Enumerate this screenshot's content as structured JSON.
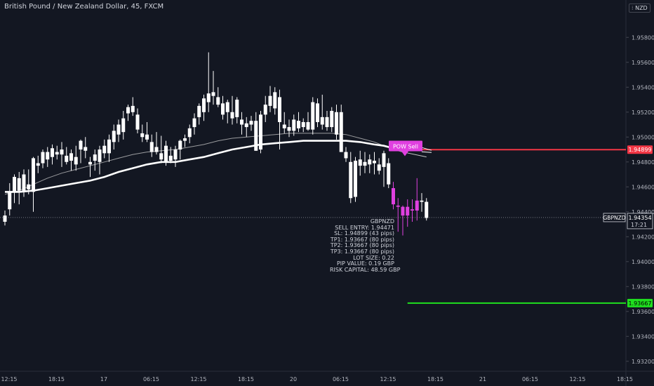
{
  "header": {
    "title": "British Pound / New Zealand Dollar, 45, FXCM",
    "currency": "NZD"
  },
  "colors": {
    "background": "#131722",
    "candle": "#ffffff",
    "signal_candle": "#e040e0",
    "sl_line": "#f23645",
    "tp_line": "#1fe01f",
    "ma_slow": "#ffffff",
    "ma_fast": "#c8c8c8",
    "axis_text": "#b2b5be"
  },
  "tags": {
    "sl": "1.94899",
    "tp": "1.93667",
    "symbol": "GBPNZD",
    "last_price": "1.94354",
    "countdown": "17:21",
    "signal": "POW Sell"
  },
  "info": {
    "lines": [
      "GBPNZD",
      "SELL ENTRY: 1.94471",
      "SL: 1.94899 (43 pips)",
      "TP1: 1.93667 (80 pips)",
      "TP2: 1.93667 (80 pips)",
      "TP3: 1.93667 (80 pips)",
      "LOT SIZE: 0.22",
      "PIP VALUE: 0.19 GBP",
      "RISK CAPITAL: 48.59 GBP"
    ]
  },
  "chart_data": {
    "type": "candlestick",
    "ylim": [
      1.9312,
      1.961
    ],
    "y_ticks": [
      "1.95800",
      "1.95600",
      "1.95400",
      "1.95200",
      "1.95000",
      "1.94800",
      "1.94600",
      "1.94400",
      "1.94200",
      "1.94000",
      "1.93800",
      "1.93600",
      "1.93400",
      "1.93200"
    ],
    "x_ticks": [
      "12:15",
      "18:15",
      "17",
      "06:15",
      "12:15",
      "18:15",
      "20",
      "06:15",
      "12:15",
      "18:15",
      "21",
      "06:15",
      "12:15",
      "18:15"
    ],
    "levels": {
      "sell_entry": 1.94471,
      "sl": 1.94899,
      "tp": 1.93667,
      "last": 1.94354
    },
    "candles": [
      {
        "o": 1.9437,
        "h": 1.9441,
        "l": 1.9429,
        "c": 1.9432
      },
      {
        "o": 1.9442,
        "h": 1.9463,
        "l": 1.9437,
        "c": 1.9456
      },
      {
        "o": 1.9456,
        "h": 1.947,
        "l": 1.9447,
        "c": 1.9468
      },
      {
        "o": 1.9467,
        "h": 1.9472,
        "l": 1.9446,
        "c": 1.9457
      },
      {
        "o": 1.9456,
        "h": 1.9474,
        "l": 1.9452,
        "c": 1.947
      },
      {
        "o": 1.9462,
        "h": 1.9474,
        "l": 1.9454,
        "c": 1.9458
      },
      {
        "o": 1.9456,
        "h": 1.9484,
        "l": 1.944,
        "c": 1.9483
      },
      {
        "o": 1.9477,
        "h": 1.9485,
        "l": 1.9471,
        "c": 1.9479
      },
      {
        "o": 1.9479,
        "h": 1.949,
        "l": 1.9475,
        "c": 1.9488
      },
      {
        "o": 1.9488,
        "h": 1.9492,
        "l": 1.9476,
        "c": 1.9482
      },
      {
        "o": 1.9484,
        "h": 1.9494,
        "l": 1.9478,
        "c": 1.9491
      },
      {
        "o": 1.9486,
        "h": 1.9493,
        "l": 1.9482,
        "c": 1.9488
      },
      {
        "o": 1.949,
        "h": 1.9496,
        "l": 1.9476,
        "c": 1.9486
      },
      {
        "o": 1.9485,
        "h": 1.9492,
        "l": 1.9478,
        "c": 1.948
      },
      {
        "o": 1.9481,
        "h": 1.949,
        "l": 1.9473,
        "c": 1.9487
      },
      {
        "o": 1.9478,
        "h": 1.9493,
        "l": 1.9473,
        "c": 1.9484
      },
      {
        "o": 1.949,
        "h": 1.9498,
        "l": 1.9479,
        "c": 1.9497
      },
      {
        "o": 1.9489,
        "h": 1.95,
        "l": 1.9483,
        "c": 1.9492
      },
      {
        "o": 1.9478,
        "h": 1.9484,
        "l": 1.9468,
        "c": 1.948
      },
      {
        "o": 1.9481,
        "h": 1.949,
        "l": 1.9473,
        "c": 1.9486
      },
      {
        "o": 1.948,
        "h": 1.9493,
        "l": 1.947,
        "c": 1.949
      },
      {
        "o": 1.9493,
        "h": 1.9498,
        "l": 1.9483,
        "c": 1.9487
      },
      {
        "o": 1.9487,
        "h": 1.9502,
        "l": 1.948,
        "c": 1.9498
      },
      {
        "o": 1.9496,
        "h": 1.951,
        "l": 1.949,
        "c": 1.9505
      },
      {
        "o": 1.9502,
        "h": 1.9514,
        "l": 1.9496,
        "c": 1.951
      },
      {
        "o": 1.9504,
        "h": 1.9521,
        "l": 1.9498,
        "c": 1.9515
      },
      {
        "o": 1.9519,
        "h": 1.9526,
        "l": 1.9513,
        "c": 1.9524
      },
      {
        "o": 1.9525,
        "h": 1.9532,
        "l": 1.9517,
        "c": 1.952
      },
      {
        "o": 1.9518,
        "h": 1.9523,
        "l": 1.9503,
        "c": 1.9506
      },
      {
        "o": 1.9503,
        "h": 1.951,
        "l": 1.9496,
        "c": 1.95
      },
      {
        "o": 1.9502,
        "h": 1.9512,
        "l": 1.9496,
        "c": 1.9498
      },
      {
        "o": 1.9496,
        "h": 1.9502,
        "l": 1.9484,
        "c": 1.9488
      },
      {
        "o": 1.9492,
        "h": 1.9504,
        "l": 1.9486,
        "c": 1.9488
      },
      {
        "o": 1.9487,
        "h": 1.9501,
        "l": 1.9479,
        "c": 1.9482
      },
      {
        "o": 1.948,
        "h": 1.9497,
        "l": 1.9477,
        "c": 1.9493
      },
      {
        "o": 1.9485,
        "h": 1.9492,
        "l": 1.9479,
        "c": 1.9481
      },
      {
        "o": 1.9482,
        "h": 1.9493,
        "l": 1.9476,
        "c": 1.949
      },
      {
        "o": 1.949,
        "h": 1.9498,
        "l": 1.9482,
        "c": 1.9497
      },
      {
        "o": 1.9497,
        "h": 1.9502,
        "l": 1.9492,
        "c": 1.9499
      },
      {
        "o": 1.95,
        "h": 1.951,
        "l": 1.9495,
        "c": 1.9507
      },
      {
        "o": 1.9508,
        "h": 1.9519,
        "l": 1.9502,
        "c": 1.9515
      },
      {
        "o": 1.9516,
        "h": 1.9527,
        "l": 1.951,
        "c": 1.9525
      },
      {
        "o": 1.952,
        "h": 1.9534,
        "l": 1.9513,
        "c": 1.9531
      },
      {
        "o": 1.9528,
        "h": 1.9568,
        "l": 1.952,
        "c": 1.9535
      },
      {
        "o": 1.9536,
        "h": 1.9553,
        "l": 1.9526,
        "c": 1.9533
      },
      {
        "o": 1.9532,
        "h": 1.954,
        "l": 1.9524,
        "c": 1.9526
      },
      {
        "o": 1.9527,
        "h": 1.9533,
        "l": 1.9514,
        "c": 1.9518
      },
      {
        "o": 1.952,
        "h": 1.953,
        "l": 1.9511,
        "c": 1.9528
      },
      {
        "o": 1.952,
        "h": 1.9533,
        "l": 1.951,
        "c": 1.9515
      },
      {
        "o": 1.9516,
        "h": 1.9532,
        "l": 1.9511,
        "c": 1.953
      },
      {
        "o": 1.951,
        "h": 1.952,
        "l": 1.9502,
        "c": 1.9514
      },
      {
        "o": 1.9508,
        "h": 1.9516,
        "l": 1.95,
        "c": 1.9511
      },
      {
        "o": 1.951,
        "h": 1.9517,
        "l": 1.9505,
        "c": 1.9513
      },
      {
        "o": 1.9513,
        "h": 1.952,
        "l": 1.9489,
        "c": 1.9489
      },
      {
        "o": 1.949,
        "h": 1.9521,
        "l": 1.9487,
        "c": 1.9518
      },
      {
        "o": 1.9518,
        "h": 1.9533,
        "l": 1.9512,
        "c": 1.9526
      },
      {
        "o": 1.9525,
        "h": 1.9541,
        "l": 1.952,
        "c": 1.9533
      },
      {
        "o": 1.9523,
        "h": 1.954,
        "l": 1.9518,
        "c": 1.9536
      },
      {
        "o": 1.9532,
        "h": 1.9538,
        "l": 1.949,
        "c": 1.9512
      },
      {
        "o": 1.951,
        "h": 1.952,
        "l": 1.9503,
        "c": 1.9507
      },
      {
        "o": 1.9508,
        "h": 1.9514,
        "l": 1.95,
        "c": 1.9505
      },
      {
        "o": 1.9505,
        "h": 1.9518,
        "l": 1.9501,
        "c": 1.9514
      },
      {
        "o": 1.9513,
        "h": 1.952,
        "l": 1.9504,
        "c": 1.9507
      },
      {
        "o": 1.9508,
        "h": 1.9515,
        "l": 1.9504,
        "c": 1.9512
      },
      {
        "o": 1.9512,
        "h": 1.952,
        "l": 1.9505,
        "c": 1.9506
      },
      {
        "o": 1.9506,
        "h": 1.9532,
        "l": 1.9502,
        "c": 1.9528
      },
      {
        "o": 1.9527,
        "h": 1.9531,
        "l": 1.9508,
        "c": 1.9512
      },
      {
        "o": 1.951,
        "h": 1.9534,
        "l": 1.9506,
        "c": 1.9516
      },
      {
        "o": 1.9516,
        "h": 1.9521,
        "l": 1.9505,
        "c": 1.9508
      },
      {
        "o": 1.9508,
        "h": 1.9524,
        "l": 1.9504,
        "c": 1.9521
      },
      {
        "o": 1.952,
        "h": 1.9526,
        "l": 1.9498,
        "c": 1.9502
      },
      {
        "o": 1.952,
        "h": 1.9526,
        "l": 1.9488,
        "c": 1.9488
      },
      {
        "o": 1.9488,
        "h": 1.9492,
        "l": 1.948,
        "c": 1.9483
      },
      {
        "o": 1.948,
        "h": 1.9488,
        "l": 1.9447,
        "c": 1.9451
      },
      {
        "o": 1.9452,
        "h": 1.9484,
        "l": 1.9448,
        "c": 1.9481
      },
      {
        "o": 1.9477,
        "h": 1.9489,
        "l": 1.9469,
        "c": 1.9482
      },
      {
        "o": 1.948,
        "h": 1.9488,
        "l": 1.9471,
        "c": 1.9477
      },
      {
        "o": 1.9478,
        "h": 1.9486,
        "l": 1.9471,
        "c": 1.9482
      },
      {
        "o": 1.9481,
        "h": 1.9488,
        "l": 1.947,
        "c": 1.9479
      },
      {
        "o": 1.9478,
        "h": 1.9483,
        "l": 1.947,
        "c": 1.9473
      },
      {
        "o": 1.9476,
        "h": 1.9489,
        "l": 1.946,
        "c": 1.9487
      },
      {
        "o": 1.9479,
        "h": 1.9483,
        "l": 1.9459,
        "c": 1.9462
      },
      {
        "o": 1.9459,
        "h": 1.9464,
        "l": 1.9442,
        "c": 1.9446
      },
      {
        "o": 1.9445,
        "h": 1.9451,
        "l": 1.9424,
        "c": 1.9444
      },
      {
        "o": 1.9444,
        "h": 1.9445,
        "l": 1.9421,
        "c": 1.9437
      },
      {
        "o": 1.9437,
        "h": 1.945,
        "l": 1.9428,
        "c": 1.9444
      },
      {
        "o": 1.9442,
        "h": 1.945,
        "l": 1.9432,
        "c": 1.9441
      },
      {
        "o": 1.9441,
        "h": 1.9467,
        "l": 1.9433,
        "c": 1.9449
      },
      {
        "o": 1.9449,
        "h": 1.9455,
        "l": 1.944,
        "c": 1.9448
      },
      {
        "o": 1.9448,
        "h": 1.9451,
        "l": 1.9433,
        "c": 1.9435
      }
    ],
    "signal_candles": [
      82,
      83,
      84,
      85,
      86,
      87
    ],
    "ma_fast": [
      [
        0,
        1.9454
      ],
      [
        3,
        1.9457
      ],
      [
        6,
        1.9462
      ],
      [
        9,
        1.9467
      ],
      [
        12,
        1.9471
      ],
      [
        15,
        1.9474
      ],
      [
        18,
        1.9477
      ],
      [
        21,
        1.948
      ],
      [
        24,
        1.9483
      ],
      [
        27,
        1.9486
      ],
      [
        30,
        1.9488
      ],
      [
        33,
        1.9489
      ],
      [
        36,
        1.949
      ],
      [
        39,
        1.9492
      ],
      [
        42,
        1.9494
      ],
      [
        45,
        1.9497
      ],
      [
        48,
        1.9499
      ],
      [
        51,
        1.95
      ],
      [
        54,
        1.9501
      ],
      [
        57,
        1.9502
      ],
      [
        60,
        1.9503
      ],
      [
        63,
        1.9503
      ],
      [
        66,
        1.9503
      ],
      [
        69,
        1.9503
      ],
      [
        72,
        1.9502
      ],
      [
        75,
        1.9499
      ],
      [
        78,
        1.9496
      ],
      [
        80,
        1.9493
      ],
      [
        82,
        1.949
      ],
      [
        84,
        1.9488
      ]
    ],
    "ma_slow": [
      [
        0,
        1.9456
      ],
      [
        3,
        1.9456
      ],
      [
        6,
        1.9457
      ],
      [
        9,
        1.9459
      ],
      [
        12,
        1.9461
      ],
      [
        15,
        1.9463
      ],
      [
        18,
        1.9465
      ],
      [
        21,
        1.9468
      ],
      [
        24,
        1.9472
      ],
      [
        27,
        1.9475
      ],
      [
        30,
        1.9478
      ],
      [
        33,
        1.948
      ],
      [
        36,
        1.948
      ],
      [
        39,
        1.9482
      ],
      [
        42,
        1.9484
      ],
      [
        45,
        1.9487
      ],
      [
        48,
        1.949
      ],
      [
        51,
        1.9492
      ],
      [
        54,
        1.9494
      ],
      [
        57,
        1.9495
      ],
      [
        60,
        1.9496
      ],
      [
        63,
        1.9497
      ],
      [
        66,
        1.9497
      ],
      [
        69,
        1.9497
      ],
      [
        72,
        1.9497
      ],
      [
        75,
        1.9496
      ],
      [
        78,
        1.9494
      ],
      [
        80,
        1.9493
      ],
      [
        82,
        1.9491
      ],
      [
        84,
        1.9489
      ]
    ]
  }
}
